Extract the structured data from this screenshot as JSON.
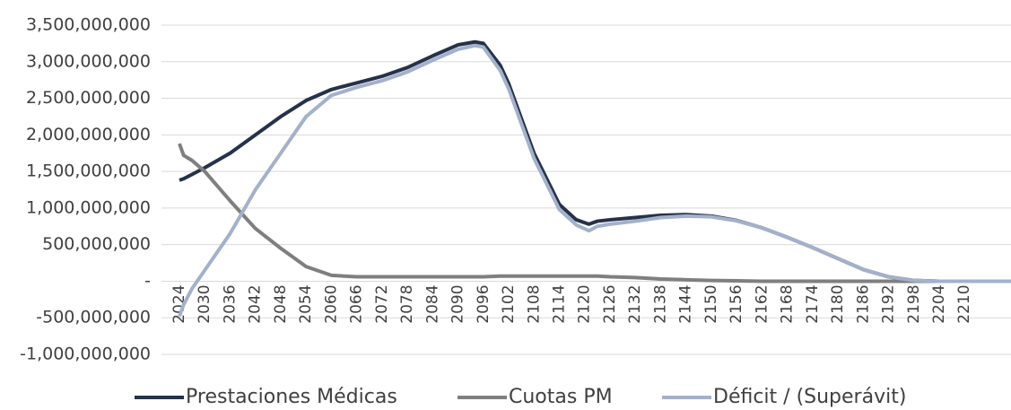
{
  "chart_data": {
    "type": "line",
    "x": [
      2024,
      2025,
      2027,
      2030,
      2036,
      2042,
      2048,
      2054,
      2060,
      2066,
      2072,
      2078,
      2084,
      2090,
      2094,
      2096,
      2100,
      2102,
      2108,
      2114,
      2118,
      2121,
      2123,
      2126,
      2132,
      2138,
      2144,
      2150,
      2156,
      2162,
      2168,
      2174,
      2180,
      2186,
      2192,
      2198,
      2204,
      2210,
      2221
    ],
    "series": [
      {
        "name": "Prestaciones Médicas",
        "color": "#26324a",
        "values": [
          1380000000,
          1400000000,
          1460000000,
          1550000000,
          1750000000,
          2000000000,
          2250000000,
          2470000000,
          2620000000,
          2710000000,
          2800000000,
          2920000000,
          3080000000,
          3230000000,
          3270000000,
          3250000000,
          2950000000,
          2700000000,
          1750000000,
          1050000000,
          840000000,
          780000000,
          820000000,
          840000000,
          870000000,
          900000000,
          910000000,
          890000000,
          830000000,
          730000000,
          600000000,
          460000000,
          310000000,
          160000000,
          60000000,
          10000000,
          0,
          0,
          0
        ]
      },
      {
        "name": "Cuotas PM",
        "color": "#7f7f7f",
        "values": [
          1880000000,
          1720000000,
          1650000000,
          1500000000,
          1100000000,
          720000000,
          450000000,
          200000000,
          80000000,
          60000000,
          60000000,
          60000000,
          60000000,
          60000000,
          60000000,
          60000000,
          70000000,
          70000000,
          70000000,
          70000000,
          70000000,
          70000000,
          70000000,
          60000000,
          50000000,
          30000000,
          20000000,
          10000000,
          5000000,
          0,
          0,
          0,
          0,
          0,
          0,
          0,
          0,
          0,
          0
        ]
      },
      {
        "name": "Déficit / (Superávit)",
        "color": "#a3b1cb",
        "values": [
          -480000000,
          -320000000,
          -100000000,
          150000000,
          650000000,
          1250000000,
          1750000000,
          2250000000,
          2540000000,
          2650000000,
          2740000000,
          2860000000,
          3020000000,
          3170000000,
          3220000000,
          3200000000,
          2880000000,
          2630000000,
          1680000000,
          980000000,
          770000000,
          690000000,
          750000000,
          780000000,
          820000000,
          870000000,
          890000000,
          880000000,
          825000000,
          730000000,
          600000000,
          460000000,
          310000000,
          160000000,
          60000000,
          10000000,
          0,
          0,
          0
        ]
      }
    ],
    "xlim": [
      2024,
      2221
    ],
    "xticks": [
      2024,
      2030,
      2036,
      2042,
      2048,
      2054,
      2060,
      2066,
      2072,
      2078,
      2084,
      2090,
      2096,
      2102,
      2108,
      2114,
      2120,
      2126,
      2132,
      2138,
      2144,
      2150,
      2156,
      2162,
      2168,
      2174,
      2180,
      2186,
      2192,
      2198,
      2204,
      2210
    ],
    "ylim": [
      -1000000000,
      3500000000
    ],
    "yticks": [
      {
        "value": -1000000000,
        "label": "-1,000,000,000"
      },
      {
        "value": -500000000,
        "label": "-500,000,000"
      },
      {
        "value": 0,
        "label": "-"
      },
      {
        "value": 500000000,
        "label": "500,000,000"
      },
      {
        "value": 1000000000,
        "label": "1,000,000,000"
      },
      {
        "value": 1500000000,
        "label": "1,500,000,000"
      },
      {
        "value": 2000000000,
        "label": "2,000,000,000"
      },
      {
        "value": 2500000000,
        "label": "2,500,000,000"
      },
      {
        "value": 3000000000,
        "label": "3,000,000,000"
      },
      {
        "value": 3500000000,
        "label": "3,500,000,000"
      }
    ],
    "grid": true,
    "legend": "bottom"
  }
}
